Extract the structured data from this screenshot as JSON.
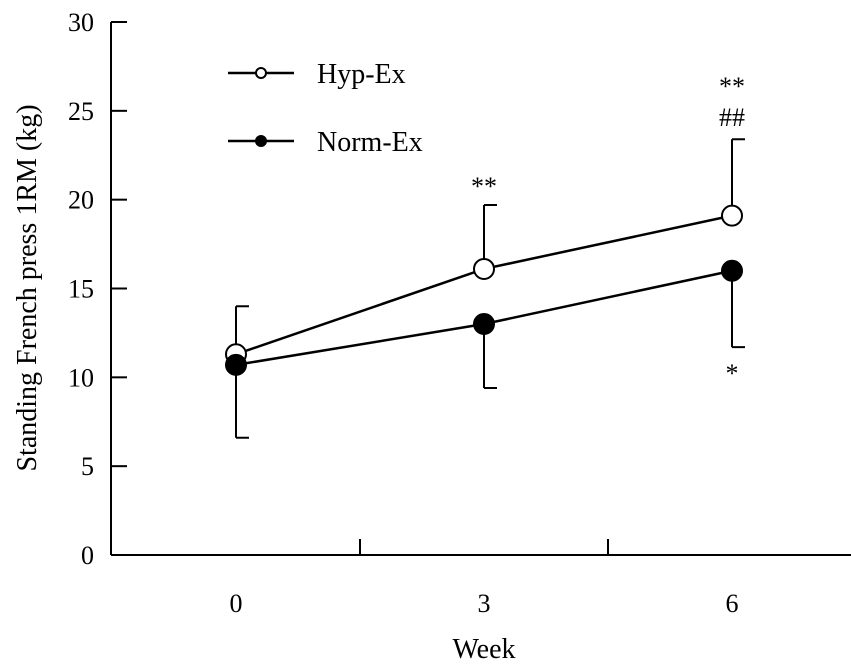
{
  "chart_data": {
    "type": "line",
    "xlabel": "Week",
    "ylabel": "Standing French press 1RM (kg)",
    "x": [
      0,
      3,
      6
    ],
    "x_tick_labels": [
      "0",
      "3",
      "6"
    ],
    "ylim": [
      0,
      30
    ],
    "y_ticks": [
      0,
      5,
      10,
      15,
      20,
      25,
      30
    ],
    "y_tick_labels": [
      "0",
      "5",
      "10",
      "15",
      "20",
      "25",
      "30"
    ],
    "legend_position": "top-left",
    "grid": false,
    "series": [
      {
        "name": "Hyp-Ex",
        "marker": "open-circle",
        "values": [
          11.3,
          16.1,
          19.1
        ],
        "error_upper": [
          14.0,
          19.7,
          23.4
        ],
        "annotations": [
          "",
          "**",
          "**\n##"
        ]
      },
      {
        "name": "Norm-Ex",
        "marker": "filled-circle",
        "values": [
          10.7,
          13.0,
          16.0
        ],
        "error_lower": [
          6.6,
          9.4,
          11.7
        ],
        "annotations": [
          "",
          "",
          "*"
        ]
      }
    ],
    "annotations": [
      {
        "week": 3,
        "text": "**"
      },
      {
        "week": 6,
        "text": "**"
      },
      {
        "week": 6,
        "text": "##"
      },
      {
        "week": 6,
        "text": "*"
      }
    ]
  }
}
